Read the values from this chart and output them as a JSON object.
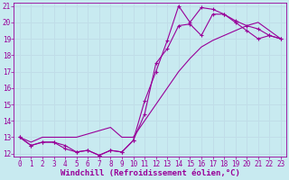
{
  "title": "",
  "xlabel": "Windchill (Refroidissement éolien,°C)",
  "background_color": "#c8eaf0",
  "grid_color": "#c0dde8",
  "line_color": "#990099",
  "xlim": [
    -0.5,
    23.5
  ],
  "ylim": [
    11.8,
    21.2
  ],
  "xticks": [
    0,
    1,
    2,
    3,
    4,
    5,
    6,
    7,
    8,
    9,
    10,
    11,
    12,
    13,
    14,
    15,
    16,
    17,
    18,
    19,
    20,
    21,
    22,
    23
  ],
  "yticks": [
    12,
    13,
    14,
    15,
    16,
    17,
    18,
    19,
    20,
    21
  ],
  "line1_x": [
    0,
    1,
    2,
    3,
    4,
    5,
    6,
    7,
    8,
    9,
    10,
    11,
    12,
    13,
    14,
    15,
    16,
    17,
    18,
    19,
    20,
    21,
    22,
    23
  ],
  "line1_y": [
    13.0,
    12.5,
    12.7,
    12.7,
    12.5,
    12.1,
    12.2,
    11.9,
    12.2,
    12.1,
    12.8,
    14.4,
    17.5,
    18.4,
    19.8,
    19.9,
    19.2,
    20.5,
    20.5,
    20.0,
    19.5,
    19.0,
    19.2,
    19.0
  ],
  "line2_x": [
    0,
    1,
    2,
    3,
    4,
    5,
    6,
    7,
    8,
    9,
    10,
    11,
    12,
    13,
    14,
    15,
    16,
    17,
    18,
    19,
    20,
    21,
    22,
    23
  ],
  "line2_y": [
    13.0,
    12.5,
    12.7,
    12.7,
    12.3,
    12.1,
    12.2,
    11.9,
    12.2,
    12.1,
    12.8,
    15.2,
    17.0,
    18.9,
    21.0,
    20.0,
    20.9,
    20.8,
    20.5,
    20.1,
    19.8,
    19.6,
    19.2,
    19.0
  ],
  "line3_x": [
    0,
    1,
    2,
    3,
    4,
    5,
    6,
    7,
    8,
    9,
    10,
    11,
    12,
    13,
    14,
    15,
    16,
    17,
    18,
    19,
    20,
    21,
    22,
    23
  ],
  "line3_y": [
    13.0,
    12.7,
    13.0,
    13.0,
    13.0,
    13.0,
    13.2,
    13.4,
    13.6,
    13.0,
    13.0,
    14.0,
    15.0,
    16.0,
    17.0,
    17.8,
    18.5,
    18.9,
    19.2,
    19.5,
    19.8,
    20.0,
    19.5,
    19.0
  ],
  "font_size_tick": 5.5,
  "font_size_label": 6.5
}
